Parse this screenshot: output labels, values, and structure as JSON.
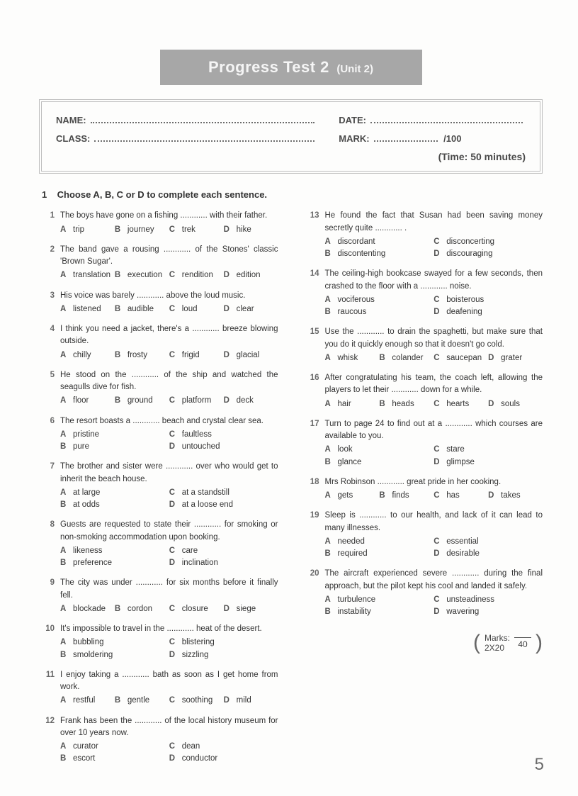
{
  "banner": {
    "main": "Progress Test 2",
    "sub": "(Unit 2)"
  },
  "header": {
    "name_label": "NAME:",
    "date_label": "DATE:",
    "class_label": "CLASS:",
    "mark_label": "MARK:",
    "mark_total": "/100",
    "time": "(Time: 50 minutes)"
  },
  "instruction": {
    "num": "1",
    "text": "Choose A, B, C or D to complete each sentence."
  },
  "marks": {
    "label": "Marks:",
    "calc": "2X20",
    "total": "40"
  },
  "page_number": "5",
  "questions": [
    {
      "n": "1",
      "text": "The boys have gone on a fishing ............ with their father.",
      "layout": "4",
      "opts": [
        "trip",
        "journey",
        "trek",
        "hike"
      ]
    },
    {
      "n": "2",
      "text": "The band gave a rousing ............ of the Stones' classic 'Brown Sugar'.",
      "layout": "4",
      "opts": [
        "translation",
        "execution",
        "rendition",
        "edition"
      ]
    },
    {
      "n": "3",
      "text": "His voice was barely ............ above the loud music.",
      "layout": "4",
      "opts": [
        "listened",
        "audible",
        "loud",
        "clear"
      ]
    },
    {
      "n": "4",
      "text": "I think you need a jacket, there's a ............ breeze blowing outside.",
      "layout": "4",
      "opts": [
        "chilly",
        "frosty",
        "frigid",
        "glacial"
      ]
    },
    {
      "n": "5",
      "text": "He stood on the ............ of the ship and watched the seagulls dive for fish.",
      "layout": "4",
      "opts": [
        "floor",
        "ground",
        "platform",
        "deck"
      ]
    },
    {
      "n": "6",
      "text": "The resort boasts a ............ beach and crystal clear sea.",
      "layout": "2",
      "opts": [
        "pristine",
        "faultless",
        "pure",
        "untouched"
      ]
    },
    {
      "n": "7",
      "text": "The brother and sister were ............ over who would get to inherit the beach house.",
      "layout": "2",
      "opts": [
        "at large",
        "at a standstill",
        "at odds",
        "at a loose end"
      ]
    },
    {
      "n": "8",
      "text": "Guests are requested to state their ............ for smoking or non-smoking accommodation upon booking.",
      "layout": "2",
      "opts": [
        "likeness",
        "care",
        "preference",
        "inclination"
      ]
    },
    {
      "n": "9",
      "text": "The city was under ............ for six months before it finally fell.",
      "layout": "4",
      "opts": [
        "blockade",
        "cordon",
        "closure",
        "siege"
      ]
    },
    {
      "n": "10",
      "text": "It's impossible to travel in the ............ heat of the desert.",
      "layout": "2",
      "opts": [
        "bubbling",
        "blistering",
        "smoldering",
        "sizzling"
      ]
    },
    {
      "n": "11",
      "text": "I enjoy taking a ............ bath as soon as I get home from work.",
      "layout": "4",
      "opts": [
        "restful",
        "gentle",
        "soothing",
        "mild"
      ]
    },
    {
      "n": "12",
      "text": "Frank has been the ............ of the local history museum for over 10 years now.",
      "layout": "2",
      "opts": [
        "curator",
        "dean",
        "escort",
        "conductor"
      ]
    },
    {
      "n": "13",
      "text": "He found the fact that Susan had been saving money secretly quite ............ .",
      "layout": "2",
      "opts": [
        "discordant",
        "disconcerting",
        "discontenting",
        "discouraging"
      ]
    },
    {
      "n": "14",
      "text": "The ceiling-high bookcase swayed for a few seconds, then crashed to the floor with a ............ noise.",
      "layout": "2",
      "opts": [
        "vociferous",
        "boisterous",
        "raucous",
        "deafening"
      ]
    },
    {
      "n": "15",
      "text": "Use the ............ to drain the spaghetti, but make sure that you do it quickly enough so that it doesn't go cold.",
      "layout": "4",
      "opts": [
        "whisk",
        "colander",
        "saucepan",
        "grater"
      ]
    },
    {
      "n": "16",
      "text": "After congratulating his team, the coach left, allowing the players to let their ............ down for a while.",
      "layout": "4",
      "opts": [
        "hair",
        "heads",
        "hearts",
        "souls"
      ]
    },
    {
      "n": "17",
      "text": "Turn to page 24 to find out at a ............ which courses are available to you.",
      "layout": "2",
      "opts": [
        "look",
        "stare",
        "glance",
        "glimpse"
      ]
    },
    {
      "n": "18",
      "text": "Mrs Robinson ............ great pride in her cooking.",
      "layout": "4",
      "opts": [
        "gets",
        "finds",
        "has",
        "takes"
      ]
    },
    {
      "n": "19",
      "text": "Sleep is ............ to our health, and lack of it can lead to many illnesses.",
      "layout": "2",
      "opts": [
        "needed",
        "essential",
        "required",
        "desirable"
      ]
    },
    {
      "n": "20",
      "text": "The aircraft experienced severe ............ during the final approach, but the pilot kept his cool and landed it safely.",
      "layout": "2",
      "opts": [
        "turbulence",
        "unsteadiness",
        "instability",
        "wavering"
      ]
    }
  ]
}
